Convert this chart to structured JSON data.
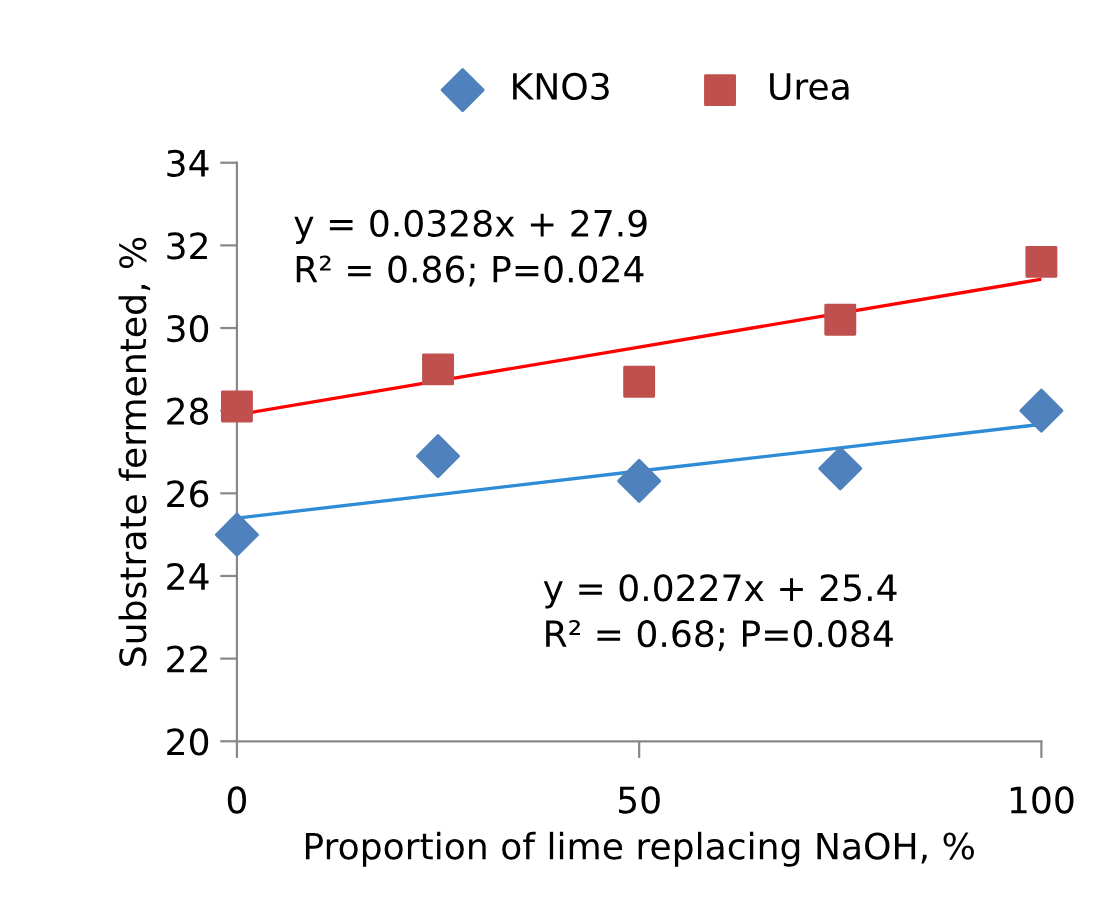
{
  "chart_data": {
    "type": "scatter",
    "xlabel": "Proportion of lime replacing NaOH, %",
    "ylabel": "Substrate fermented, %",
    "x": [
      0,
      25,
      50,
      75,
      100
    ],
    "series": [
      {
        "name": "KNO3",
        "color": "#4f81bd",
        "marker": "diamond",
        "values": [
          25.0,
          26.9,
          26.3,
          26.6,
          28.0
        ]
      },
      {
        "name": "Urea",
        "color": "#c0504d",
        "marker": "square",
        "values": [
          28.1,
          29.0,
          28.7,
          30.2,
          31.6
        ]
      },
      {
        "type": "line",
        "color": "#2e8bd6",
        "values": [
          25.4,
          25.97,
          26.54,
          27.1,
          27.67
        ],
        "marker": "none"
      },
      {
        "type": "line",
        "color": "#ff0000",
        "values": [
          27.9,
          28.72,
          29.54,
          30.36,
          31.18
        ],
        "marker": "none"
      }
    ],
    "annotations": [
      "y = 0.0328x + 27.9\nR² = 0.86; P=0.024",
      "y = 0.0227x + 25.4\nR² = 0.68; P=0.084"
    ],
    "xlim": [
      0,
      100
    ],
    "xticks": [
      0,
      50,
      100
    ],
    "ylim": [
      20,
      34
    ],
    "yticks": [
      20,
      22,
      24,
      26,
      28,
      30,
      32,
      34
    ],
    "grid": false,
    "legend": "top"
  }
}
